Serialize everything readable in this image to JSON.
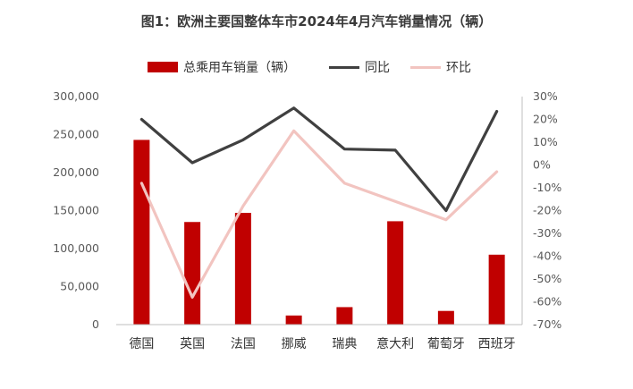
{
  "chart_data": {
    "type": "bar",
    "title": "图1：欧洲主要国整体车市2024年4月汽车销量情况（辆）",
    "categories": [
      "德国",
      "英国",
      "法国",
      "挪威",
      "瑞典",
      "意大利",
      "葡萄牙",
      "西班牙"
    ],
    "series": [
      {
        "name": "总乘用车销量（辆）",
        "type": "bar",
        "axis": "left",
        "color": "#c00000",
        "values": [
          243000,
          135000,
          147000,
          12000,
          23000,
          136000,
          18000,
          92000
        ]
      },
      {
        "name": "同比",
        "type": "line",
        "axis": "right",
        "unit": "%",
        "color": "#404040",
        "values": [
          20,
          1,
          11,
          25,
          7,
          6.5,
          -20,
          23.5
        ]
      },
      {
        "name": "环比",
        "type": "line",
        "axis": "right",
        "unit": "%",
        "color": "#f2c4c0",
        "values": [
          -8,
          -58,
          -18,
          15,
          -8,
          -16,
          -24,
          -3
        ]
      }
    ],
    "y_left": {
      "ylim": [
        0,
        300000
      ],
      "ticks": [
        "0",
        "50,000",
        "100,000",
        "150,000",
        "200,000",
        "250,000",
        "300,000"
      ]
    },
    "y_right": {
      "ylim": [
        -70,
        30
      ],
      "ticks": [
        "-70%",
        "-60%",
        "-50%",
        "-40%",
        "-30%",
        "-20%",
        "-10%",
        "0%",
        "10%",
        "20%",
        "30%"
      ]
    },
    "legend": "top",
    "grid": false
  }
}
